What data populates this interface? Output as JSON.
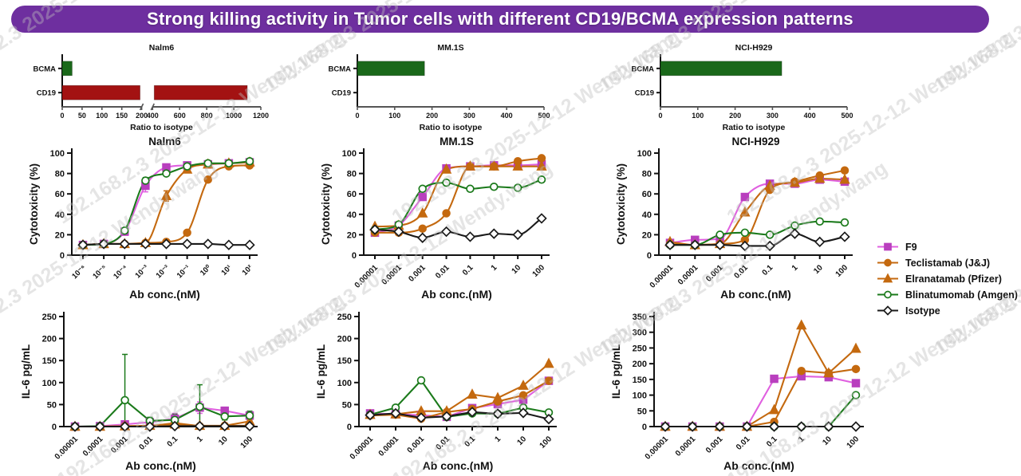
{
  "banner": {
    "title": "Strong killing activity in Tumor cells with different CD19/BCMA expression patterns",
    "bg": "#6E2F9F",
    "text_color": "#ffffff"
  },
  "watermark": {
    "text": "192.168.2.3  2025-12-12  Wendy.wang"
  },
  "legend": {
    "position": "right-middle",
    "items": [
      {
        "series": "f9",
        "label": "F9"
      },
      {
        "series": "teclistamab",
        "label": "Teclistamab (J&J)"
      },
      {
        "series": "elranatamab",
        "label": "Elranatamab (Pfizer)"
      },
      {
        "series": "blinatumomab",
        "label": "Blinatumomab (Amgen)"
      },
      {
        "series": "isotype",
        "label": "Isotype"
      }
    ]
  },
  "series_styles": {
    "f9": {
      "line": "#E060E0",
      "fill": "#B93FBE",
      "marker": "square",
      "open": false
    },
    "teclistamab": {
      "line": "#C4690F",
      "fill": "#C4690F",
      "marker": "circle",
      "open": false
    },
    "elranatamab": {
      "line": "#C4690F",
      "fill": "#C4690F",
      "marker": "triangle",
      "open": false
    },
    "blinatumomab": {
      "line": "#1B7A1B",
      "fill": "#ffffff",
      "marker": "circle",
      "open": true
    },
    "isotype": {
      "line": "#1a1a1a",
      "fill": "#ffffff",
      "marker": "diamond",
      "open": true
    }
  },
  "chart_data": [
    {
      "id": "nalm6-expr",
      "type": "hbar",
      "title": "Nalm6",
      "xlabel": "Ratio to isotype",
      "categories": [
        "BCMA",
        "CD19"
      ],
      "values": [
        25,
        1100
      ],
      "bar_colors": [
        "#1A681A",
        "#A31212"
      ],
      "axis_break": true,
      "segments": [
        {
          "min": 0,
          "max": 200,
          "f0": 0.0,
          "f1": 0.4
        },
        {
          "min": 400,
          "max": 1200,
          "f0": 0.455,
          "f1": 1.0
        }
      ],
      "tick_groups": [
        [
          0,
          50,
          100,
          150,
          200
        ],
        [
          400,
          600,
          800,
          1000,
          1200
        ]
      ]
    },
    {
      "id": "mm1s-expr",
      "type": "hbar",
      "title": "MM.1S",
      "xlabel": "Ratio to isotype",
      "categories": [
        "BCMA",
        "CD19"
      ],
      "values": [
        180,
        0
      ],
      "bar_colors": [
        "#1A681A",
        "#A31212"
      ],
      "axis_break": false,
      "segments": [
        {
          "min": 0,
          "max": 500,
          "f0": 0.0,
          "f1": 1.0
        }
      ],
      "tick_groups": [
        [
          0,
          100,
          200,
          300,
          400,
          500
        ]
      ]
    },
    {
      "id": "h929-expr",
      "type": "hbar",
      "title": "NCI-H929",
      "xlabel": "Ratio to isotype",
      "categories": [
        "BCMA",
        "CD19"
      ],
      "values": [
        325,
        0
      ],
      "bar_colors": [
        "#1A681A",
        "#A31212"
      ],
      "axis_break": false,
      "segments": [
        {
          "min": 0,
          "max": 500,
          "f0": 0.0,
          "f1": 1.0
        }
      ],
      "tick_groups": [
        [
          0,
          100,
          200,
          300,
          400,
          500
        ]
      ]
    },
    {
      "id": "nalm6-cyto",
      "type": "line",
      "smooth": true,
      "title": "Nalm6",
      "xlabel": "Ab conc.(nM)",
      "ylabel": "Cytotoxicity (%)",
      "x_ticks": [
        "10⁻⁶",
        "10⁻⁵",
        "10⁻⁴",
        "10⁻³",
        "10⁻²",
        "10⁻¹",
        "10⁰",
        "10¹",
        "10²"
      ],
      "x_tick_font": 9.5,
      "ylim": [
        0,
        100
      ],
      "yticks": [
        0,
        20,
        40,
        60,
        80,
        100
      ],
      "series": [
        {
          "name": "f9",
          "values": [
            10,
            11,
            23,
            68,
            86,
            88,
            89,
            90,
            91
          ],
          "errors": [
            0,
            0,
            2,
            6,
            2,
            2,
            0,
            0,
            0
          ]
        },
        {
          "name": "teclistamab",
          "values": [
            10,
            11,
            11,
            12,
            13,
            22,
            74,
            87,
            88
          ]
        },
        {
          "name": "elranatamab",
          "values": [
            10,
            11,
            11,
            12,
            58,
            84,
            89,
            90,
            91
          ],
          "errors": [
            0,
            0,
            0,
            0,
            5,
            2,
            0,
            0,
            0
          ]
        },
        {
          "name": "blinatumomab",
          "values": [
            10,
            11,
            24,
            73,
            80,
            87,
            90,
            90,
            92
          ],
          "errors": [
            0,
            0,
            2,
            3,
            2,
            0,
            0,
            0,
            0
          ]
        },
        {
          "name": "isotype",
          "values": [
            10,
            11,
            11,
            11,
            11,
            11,
            11,
            10,
            10
          ]
        }
      ]
    },
    {
      "id": "mm1s-cyto",
      "type": "line",
      "smooth": true,
      "title": "MM.1S",
      "xlabel": "Ab conc.(nM)",
      "ylabel": "Cytotoxicity (%)",
      "x_ticks": [
        "0.00001",
        "0.0001",
        "0.001",
        "0.01",
        "0.1",
        "1",
        "10",
        "100"
      ],
      "x_tick_font": 10,
      "ylim": [
        0,
        100
      ],
      "yticks": [
        0,
        20,
        40,
        60,
        80,
        100
      ],
      "series": [
        {
          "name": "f9",
          "values": [
            22,
            29,
            57,
            85,
            87,
            88,
            88,
            89
          ]
        },
        {
          "name": "teclistamab",
          "values": [
            22,
            22,
            26,
            41,
            87,
            87,
            92,
            95
          ]
        },
        {
          "name": "elranatamab",
          "values": [
            28,
            29,
            41,
            84,
            87,
            87,
            87,
            87
          ]
        },
        {
          "name": "blinatumomab",
          "values": [
            25,
            30,
            65,
            71,
            65,
            67,
            66,
            74
          ]
        },
        {
          "name": "isotype",
          "values": [
            25,
            23,
            17,
            23,
            18,
            21,
            20,
            36
          ]
        }
      ]
    },
    {
      "id": "h929-cyto",
      "type": "line",
      "smooth": true,
      "title": "NCI-H929",
      "xlabel": "Ab conc.(nM)",
      "ylabel": "Cytotoxicity (%)",
      "x_ticks": [
        "0.00001",
        "0.0001",
        "0.001",
        "0.01",
        "0.1",
        "1",
        "10",
        "100"
      ],
      "x_tick_font": 10,
      "ylim": [
        0,
        100
      ],
      "yticks": [
        0,
        20,
        40,
        60,
        80,
        100
      ],
      "series": [
        {
          "name": "f9",
          "values": [
            12,
            15,
            16,
            57,
            70,
            70,
            74,
            72
          ]
        },
        {
          "name": "teclistamab",
          "values": [
            11,
            10,
            11,
            15,
            64,
            72,
            78,
            83
          ]
        },
        {
          "name": "elranatamab",
          "values": [
            13,
            10,
            11,
            42,
            68,
            71,
            75,
            74
          ]
        },
        {
          "name": "blinatumomab",
          "values": [
            10,
            10,
            20,
            22,
            20,
            29,
            33,
            32
          ]
        },
        {
          "name": "isotype",
          "values": [
            10,
            10,
            10,
            9,
            9,
            21,
            13,
            18
          ]
        }
      ]
    },
    {
      "id": "nalm6-il6",
      "type": "line",
      "smooth": false,
      "title": "",
      "xlabel": "Ab conc.(nM)",
      "ylabel": "IL-6 pg/mL",
      "x_ticks": [
        "0.00001",
        "0.0001",
        "0.001",
        "0.01",
        "0.1",
        "1",
        "10",
        "100"
      ],
      "x_tick_font": 10,
      "ylim": [
        0,
        250
      ],
      "yticks": [
        0,
        50,
        100,
        150,
        200,
        250
      ],
      "series": [
        {
          "name": "f9",
          "values": [
            0,
            1,
            5,
            10,
            18,
            43,
            36,
            25
          ],
          "errors": [
            0,
            0,
            8,
            6,
            12,
            13,
            8,
            10
          ]
        },
        {
          "name": "teclistamab",
          "values": [
            0,
            0,
            1,
            1,
            8,
            1,
            2,
            2
          ]
        },
        {
          "name": "elranatamab",
          "values": [
            0,
            0,
            1,
            2,
            5,
            2,
            2,
            12
          ]
        },
        {
          "name": "blinatumomab",
          "values": [
            0,
            1,
            60,
            13,
            15,
            45,
            23,
            25
          ],
          "errors": [
            0,
            0,
            104,
            8,
            13,
            50,
            8,
            10
          ]
        },
        {
          "name": "isotype",
          "values": [
            0,
            0,
            0,
            0,
            1,
            1,
            1,
            1
          ]
        }
      ]
    },
    {
      "id": "mm1s-il6",
      "type": "line",
      "smooth": false,
      "title": "",
      "xlabel": "Ab conc.(nM)",
      "ylabel": "IL-6  pg/mL",
      "x_ticks": [
        "0.00001",
        "0.0001",
        "0.001",
        "0.01",
        "0.1",
        "1",
        "10",
        "100"
      ],
      "x_tick_font": 10,
      "ylim": [
        0,
        250
      ],
      "yticks": [
        0,
        50,
        100,
        150,
        200,
        250
      ],
      "series": [
        {
          "name": "f9",
          "values": [
            30,
            28,
            26,
            22,
            42,
            51,
            61,
            104
          ]
        },
        {
          "name": "teclistamab",
          "values": [
            25,
            27,
            18,
            33,
            40,
            57,
            71,
            104
          ]
        },
        {
          "name": "elranatamab",
          "values": [
            27,
            28,
            35,
            35,
            73,
            65,
            93,
            143
          ]
        },
        {
          "name": "blinatumomab",
          "values": [
            27,
            43,
            105,
            22,
            30,
            29,
            43,
            32
          ]
        },
        {
          "name": "isotype",
          "values": [
            26,
            30,
            20,
            23,
            33,
            29,
            31,
            17
          ]
        }
      ]
    },
    {
      "id": "h929-il6",
      "type": "line",
      "smooth": false,
      "title": "",
      "xlabel": "Ab conc.(nM)",
      "ylabel": "IL-6  pg/mL",
      "x_ticks": [
        "0.00001",
        "0.0001",
        "0.001",
        "0.01",
        "0.1",
        "1",
        "10",
        "100"
      ],
      "x_tick_font": 10,
      "ylim": [
        0,
        350
      ],
      "yticks": [
        0,
        50,
        100,
        150,
        200,
        250,
        300,
        350
      ],
      "series": [
        {
          "name": "f9",
          "values": [
            0,
            0,
            0,
            0,
            152,
            160,
            157,
            138
          ]
        },
        {
          "name": "teclistamab",
          "values": [
            0,
            0,
            0,
            0,
            15,
            177,
            170,
            183
          ]
        },
        {
          "name": "elranatamab",
          "values": [
            0,
            0,
            0,
            0,
            53,
            322,
            170,
            248
          ]
        },
        {
          "name": "blinatumomab",
          "values": [
            0,
            0,
            0,
            0,
            0,
            0,
            0,
            100
          ]
        },
        {
          "name": "isotype",
          "values": [
            0,
            0,
            0,
            0,
            0,
            0,
            0,
            0
          ]
        }
      ]
    }
  ]
}
